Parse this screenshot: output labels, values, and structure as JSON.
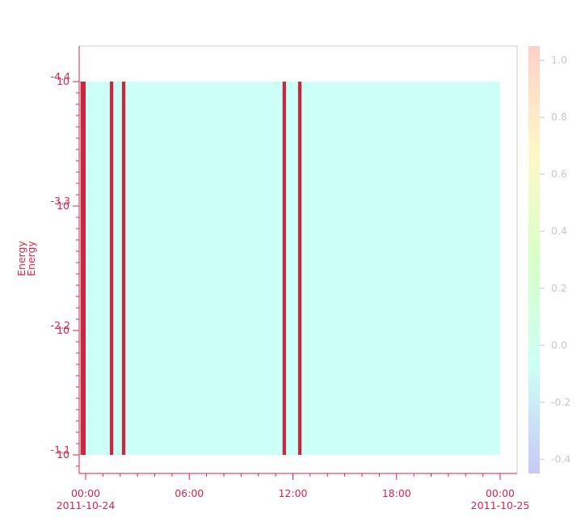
{
  "chart_data": {
    "type": "heatmap",
    "title": "",
    "ylabel": "Energy",
    "xlabel": "",
    "y_scale": "log",
    "y_tick_labels": [
      {
        "exp": "-1.1",
        "label": "10"
      },
      {
        "exp": "-2.2",
        "label": "10"
      },
      {
        "exp": "-3.3",
        "label": "10"
      },
      {
        "exp": "-4.4",
        "label": "10"
      }
    ],
    "x_tick_labels": [
      {
        "time": "00:00",
        "date": "2011-10-24"
      },
      {
        "time": "06:00",
        "date": ""
      },
      {
        "time": "12:00",
        "date": ""
      },
      {
        "time": "18:00",
        "date": ""
      },
      {
        "time": "00:00",
        "date": "2011-10-25"
      }
    ],
    "colorbar": {
      "ticks": [
        "-0.4",
        "-0.2",
        "0.0",
        "0.2",
        "0.4",
        "0.6",
        "0.8",
        "1.0"
      ],
      "range": [
        -0.45,
        1.05
      ]
    },
    "background_value": 0.0,
    "bands": [
      {
        "start_hour": -0.3,
        "end_hour": 0.0,
        "value": 1.0
      },
      {
        "start_hour": 1.4,
        "end_hour": 1.6,
        "value": 1.0
      },
      {
        "start_hour": 2.1,
        "end_hour": 2.3,
        "value": 1.0
      },
      {
        "start_hour": 11.4,
        "end_hour": 11.6,
        "value": 1.0
      },
      {
        "start_hour": 12.3,
        "end_hour": 12.5,
        "value": 1.0
      }
    ],
    "colors": {
      "axis": "#d8244a",
      "band": "#c8283f",
      "background": "#ccfff5",
      "colorbar_stops": [
        "#c8c8f8",
        "#ccfff5",
        "#d8ffc8",
        "#fff8c8",
        "#ffd0c8"
      ]
    }
  }
}
